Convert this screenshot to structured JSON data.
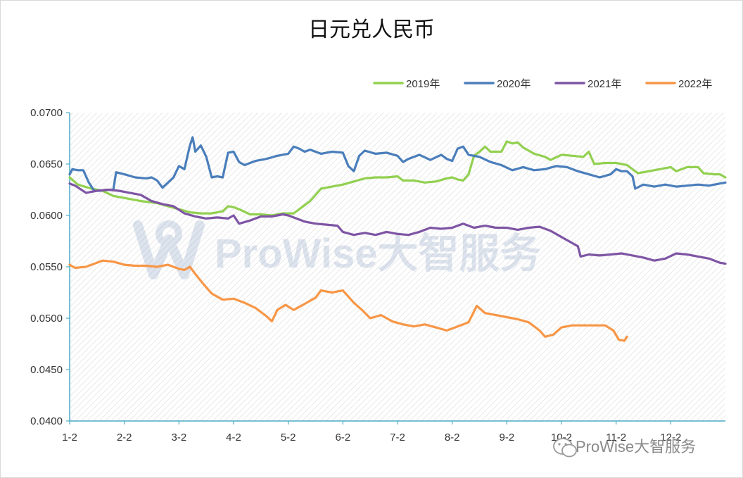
{
  "chart_data": {
    "type": "line",
    "title": "日元兑人民币",
    "ylim": [
      0.04,
      0.07
    ],
    "y_ticks": [
      "0.0700",
      "0.0650",
      "0.0600",
      "0.0550",
      "0.0500",
      "0.0450",
      "0.0400"
    ],
    "y_tick_values": [
      0.07,
      0.065,
      0.06,
      0.055,
      0.05,
      0.045,
      0.04
    ],
    "x_ticks": [
      "1-2",
      "2-2",
      "3-2",
      "4-2",
      "5-2",
      "6-2",
      "7-2",
      "8-2",
      "9-2",
      "10-2",
      "11-2",
      "12-2"
    ],
    "x_unit": "month (1 = 1-2, 13 = end of year)",
    "xlim": [
      1,
      13
    ],
    "legend_position": "top-right",
    "grid": "hatched plot area",
    "series": [
      {
        "name": "2019年",
        "color": "#92d050",
        "points": [
          [
            1.0,
            0.0637
          ],
          [
            1.15,
            0.063
          ],
          [
            1.4,
            0.0626
          ],
          [
            1.6,
            0.0624
          ],
          [
            1.8,
            0.0619
          ],
          [
            2.0,
            0.0617
          ],
          [
            2.3,
            0.0614
          ],
          [
            2.6,
            0.0612
          ],
          [
            2.8,
            0.0609
          ],
          [
            3.0,
            0.0606
          ],
          [
            3.2,
            0.0603
          ],
          [
            3.4,
            0.0602
          ],
          [
            3.6,
            0.0602
          ],
          [
            3.8,
            0.0604
          ],
          [
            3.9,
            0.0609
          ],
          [
            4.0,
            0.0608
          ],
          [
            4.1,
            0.0606
          ],
          [
            4.3,
            0.0601
          ],
          [
            4.5,
            0.0601
          ],
          [
            4.7,
            0.06
          ],
          [
            4.9,
            0.0602
          ],
          [
            5.0,
            0.0602
          ],
          [
            5.1,
            0.0602
          ],
          [
            5.25,
            0.0608
          ],
          [
            5.4,
            0.0614
          ],
          [
            5.5,
            0.062
          ],
          [
            5.6,
            0.0626
          ],
          [
            5.8,
            0.0628
          ],
          [
            6.0,
            0.063
          ],
          [
            6.2,
            0.0633
          ],
          [
            6.4,
            0.0636
          ],
          [
            6.6,
            0.0637
          ],
          [
            6.8,
            0.0637
          ],
          [
            7.0,
            0.0638
          ],
          [
            7.1,
            0.0634
          ],
          [
            7.3,
            0.0634
          ],
          [
            7.5,
            0.0632
          ],
          [
            7.7,
            0.0633
          ],
          [
            7.9,
            0.0636
          ],
          [
            8.0,
            0.0637
          ],
          [
            8.1,
            0.0635
          ],
          [
            8.2,
            0.0634
          ],
          [
            8.3,
            0.064
          ],
          [
            8.4,
            0.0658
          ],
          [
            8.5,
            0.0662
          ],
          [
            8.6,
            0.0667
          ],
          [
            8.7,
            0.0662
          ],
          [
            8.9,
            0.0662
          ],
          [
            9.0,
            0.0672
          ],
          [
            9.1,
            0.067
          ],
          [
            9.2,
            0.0671
          ],
          [
            9.3,
            0.0666
          ],
          [
            9.5,
            0.066
          ],
          [
            9.7,
            0.0657
          ],
          [
            9.8,
            0.0654
          ],
          [
            10.0,
            0.0659
          ],
          [
            10.2,
            0.0658
          ],
          [
            10.4,
            0.0657
          ],
          [
            10.5,
            0.0662
          ],
          [
            10.6,
            0.065
          ],
          [
            10.8,
            0.0651
          ],
          [
            11.0,
            0.0651
          ],
          [
            11.2,
            0.0649
          ],
          [
            11.4,
            0.0641
          ],
          [
            11.6,
            0.0643
          ],
          [
            11.8,
            0.0645
          ],
          [
            12.0,
            0.0647
          ],
          [
            12.1,
            0.0643
          ],
          [
            12.3,
            0.0647
          ],
          [
            12.5,
            0.0647
          ],
          [
            12.6,
            0.0641
          ],
          [
            12.8,
            0.064
          ],
          [
            12.9,
            0.064
          ],
          [
            13.0,
            0.0637
          ]
        ]
      },
      {
        "name": "2020年",
        "color": "#4a7ebb",
        "points": [
          [
            1.0,
            0.064
          ],
          [
            1.05,
            0.0645
          ],
          [
            1.15,
            0.0644
          ],
          [
            1.25,
            0.0644
          ],
          [
            1.35,
            0.0632
          ],
          [
            1.45,
            0.0624
          ],
          [
            1.55,
            0.0624
          ],
          [
            1.7,
            0.0625
          ],
          [
            1.8,
            0.0625
          ],
          [
            1.85,
            0.0642
          ],
          [
            2.0,
            0.064
          ],
          [
            2.2,
            0.0637
          ],
          [
            2.4,
            0.0636
          ],
          [
            2.5,
            0.0637
          ],
          [
            2.6,
            0.0634
          ],
          [
            2.7,
            0.0627
          ],
          [
            2.8,
            0.0632
          ],
          [
            2.9,
            0.0637
          ],
          [
            3.0,
            0.0648
          ],
          [
            3.1,
            0.0645
          ],
          [
            3.2,
            0.0668
          ],
          [
            3.25,
            0.0676
          ],
          [
            3.3,
            0.0662
          ],
          [
            3.4,
            0.0668
          ],
          [
            3.5,
            0.0657
          ],
          [
            3.6,
            0.0637
          ],
          [
            3.7,
            0.0638
          ],
          [
            3.8,
            0.0637
          ],
          [
            3.9,
            0.0661
          ],
          [
            4.0,
            0.0662
          ],
          [
            4.1,
            0.0652
          ],
          [
            4.2,
            0.0649
          ],
          [
            4.4,
            0.0653
          ],
          [
            4.6,
            0.0655
          ],
          [
            4.8,
            0.0658
          ],
          [
            5.0,
            0.066
          ],
          [
            5.1,
            0.0667
          ],
          [
            5.2,
            0.0665
          ],
          [
            5.3,
            0.0662
          ],
          [
            5.4,
            0.0664
          ],
          [
            5.6,
            0.066
          ],
          [
            5.8,
            0.0662
          ],
          [
            6.0,
            0.0661
          ],
          [
            6.1,
            0.0648
          ],
          [
            6.2,
            0.0643
          ],
          [
            6.3,
            0.0658
          ],
          [
            6.4,
            0.0663
          ],
          [
            6.6,
            0.066
          ],
          [
            6.8,
            0.0661
          ],
          [
            7.0,
            0.0658
          ],
          [
            7.1,
            0.0652
          ],
          [
            7.2,
            0.0655
          ],
          [
            7.4,
            0.0659
          ],
          [
            7.6,
            0.0654
          ],
          [
            7.8,
            0.0659
          ],
          [
            7.9,
            0.0655
          ],
          [
            8.0,
            0.0653
          ],
          [
            8.1,
            0.0665
          ],
          [
            8.2,
            0.0667
          ],
          [
            8.3,
            0.0659
          ],
          [
            8.5,
            0.0657
          ],
          [
            8.7,
            0.0652
          ],
          [
            8.9,
            0.0649
          ],
          [
            9.1,
            0.0644
          ],
          [
            9.3,
            0.0647
          ],
          [
            9.5,
            0.0644
          ],
          [
            9.7,
            0.0645
          ],
          [
            9.9,
            0.0648
          ],
          [
            10.1,
            0.0647
          ],
          [
            10.3,
            0.0643
          ],
          [
            10.5,
            0.064
          ],
          [
            10.7,
            0.0637
          ],
          [
            10.9,
            0.064
          ],
          [
            11.0,
            0.0645
          ],
          [
            11.1,
            0.0643
          ],
          [
            11.2,
            0.0643
          ],
          [
            11.3,
            0.0638
          ],
          [
            11.35,
            0.0626
          ],
          [
            11.5,
            0.063
          ],
          [
            11.7,
            0.0628
          ],
          [
            11.9,
            0.063
          ],
          [
            12.1,
            0.0628
          ],
          [
            12.3,
            0.0629
          ],
          [
            12.5,
            0.063
          ],
          [
            12.7,
            0.0629
          ],
          [
            12.9,
            0.0631
          ],
          [
            13.0,
            0.0632
          ]
        ]
      },
      {
        "name": "2021年",
        "color": "#7e55a4",
        "points": [
          [
            1.0,
            0.0631
          ],
          [
            1.1,
            0.0629
          ],
          [
            1.3,
            0.0622
          ],
          [
            1.5,
            0.0624
          ],
          [
            1.7,
            0.0625
          ],
          [
            1.9,
            0.0624
          ],
          [
            2.1,
            0.0622
          ],
          [
            2.3,
            0.062
          ],
          [
            2.5,
            0.0614
          ],
          [
            2.7,
            0.0611
          ],
          [
            2.9,
            0.0609
          ],
          [
            3.1,
            0.0602
          ],
          [
            3.3,
            0.0599
          ],
          [
            3.5,
            0.0597
          ],
          [
            3.7,
            0.0598
          ],
          [
            3.9,
            0.0597
          ],
          [
            4.0,
            0.06
          ],
          [
            4.1,
            0.0592
          ],
          [
            4.3,
            0.0595
          ],
          [
            4.5,
            0.0599
          ],
          [
            4.7,
            0.0599
          ],
          [
            4.9,
            0.0601
          ],
          [
            5.0,
            0.06
          ],
          [
            5.1,
            0.0598
          ],
          [
            5.3,
            0.0594
          ],
          [
            5.5,
            0.0592
          ],
          [
            5.7,
            0.0591
          ],
          [
            5.9,
            0.059
          ],
          [
            6.0,
            0.0584
          ],
          [
            6.2,
            0.0581
          ],
          [
            6.4,
            0.0583
          ],
          [
            6.6,
            0.0581
          ],
          [
            6.8,
            0.0584
          ],
          [
            7.0,
            0.0582
          ],
          [
            7.2,
            0.0581
          ],
          [
            7.4,
            0.0584
          ],
          [
            7.6,
            0.0588
          ],
          [
            7.8,
            0.0587
          ],
          [
            8.0,
            0.0588
          ],
          [
            8.2,
            0.0592
          ],
          [
            8.4,
            0.0588
          ],
          [
            8.6,
            0.059
          ],
          [
            8.8,
            0.0588
          ],
          [
            9.0,
            0.0588
          ],
          [
            9.2,
            0.0586
          ],
          [
            9.4,
            0.0588
          ],
          [
            9.6,
            0.0589
          ],
          [
            9.8,
            0.0585
          ],
          [
            10.0,
            0.0579
          ],
          [
            10.2,
            0.0573
          ],
          [
            10.3,
            0.057
          ],
          [
            10.35,
            0.056
          ],
          [
            10.5,
            0.0562
          ],
          [
            10.7,
            0.0561
          ],
          [
            10.9,
            0.0562
          ],
          [
            11.1,
            0.0563
          ],
          [
            11.3,
            0.0561
          ],
          [
            11.5,
            0.0559
          ],
          [
            11.7,
            0.0556
          ],
          [
            11.9,
            0.0558
          ],
          [
            12.1,
            0.0563
          ],
          [
            12.3,
            0.0562
          ],
          [
            12.5,
            0.056
          ],
          [
            12.7,
            0.0558
          ],
          [
            12.9,
            0.0554
          ],
          [
            13.0,
            0.0553
          ]
        ]
      },
      {
        "name": "2022年",
        "color": "#f79646",
        "points": [
          [
            1.0,
            0.0552
          ],
          [
            1.1,
            0.0549
          ],
          [
            1.3,
            0.055
          ],
          [
            1.45,
            0.0553
          ],
          [
            1.6,
            0.0556
          ],
          [
            1.8,
            0.0555
          ],
          [
            2.0,
            0.0552
          ],
          [
            2.2,
            0.0551
          ],
          [
            2.4,
            0.0551
          ],
          [
            2.6,
            0.055
          ],
          [
            2.8,
            0.0552
          ],
          [
            3.0,
            0.0548
          ],
          [
            3.1,
            0.0547
          ],
          [
            3.2,
            0.055
          ],
          [
            3.3,
            0.0543
          ],
          [
            3.45,
            0.0533
          ],
          [
            3.6,
            0.0524
          ],
          [
            3.8,
            0.0518
          ],
          [
            4.0,
            0.0519
          ],
          [
            4.2,
            0.0515
          ],
          [
            4.4,
            0.051
          ],
          [
            4.6,
            0.0502
          ],
          [
            4.7,
            0.0497
          ],
          [
            4.8,
            0.0508
          ],
          [
            4.95,
            0.0513
          ],
          [
            5.1,
            0.0508
          ],
          [
            5.3,
            0.0514
          ],
          [
            5.5,
            0.052
          ],
          [
            5.6,
            0.0527
          ],
          [
            5.8,
            0.0525
          ],
          [
            6.0,
            0.0527
          ],
          [
            6.1,
            0.0521
          ],
          [
            6.2,
            0.0515
          ],
          [
            6.35,
            0.0508
          ],
          [
            6.5,
            0.05
          ],
          [
            6.7,
            0.0503
          ],
          [
            6.9,
            0.0497
          ],
          [
            7.1,
            0.0494
          ],
          [
            7.3,
            0.0492
          ],
          [
            7.5,
            0.0494
          ],
          [
            7.7,
            0.0491
          ],
          [
            7.9,
            0.0488
          ],
          [
            8.1,
            0.0492
          ],
          [
            8.3,
            0.0496
          ],
          [
            8.45,
            0.0512
          ],
          [
            8.6,
            0.0505
          ],
          [
            8.8,
            0.0503
          ],
          [
            9.0,
            0.0501
          ],
          [
            9.2,
            0.0499
          ],
          [
            9.4,
            0.0496
          ],
          [
            9.6,
            0.0488
          ],
          [
            9.7,
            0.0482
          ],
          [
            9.85,
            0.0484
          ],
          [
            10.0,
            0.0491
          ],
          [
            10.2,
            0.0493
          ],
          [
            10.4,
            0.0493
          ],
          [
            10.6,
            0.0493
          ],
          [
            10.8,
            0.0493
          ],
          [
            10.95,
            0.0488
          ],
          [
            11.05,
            0.0479
          ],
          [
            11.15,
            0.0478
          ],
          [
            11.2,
            0.0482
          ]
        ]
      }
    ]
  },
  "watermark": {
    "center_text": "ProWise大智服务",
    "corner_text": "ProWise大智服务"
  }
}
